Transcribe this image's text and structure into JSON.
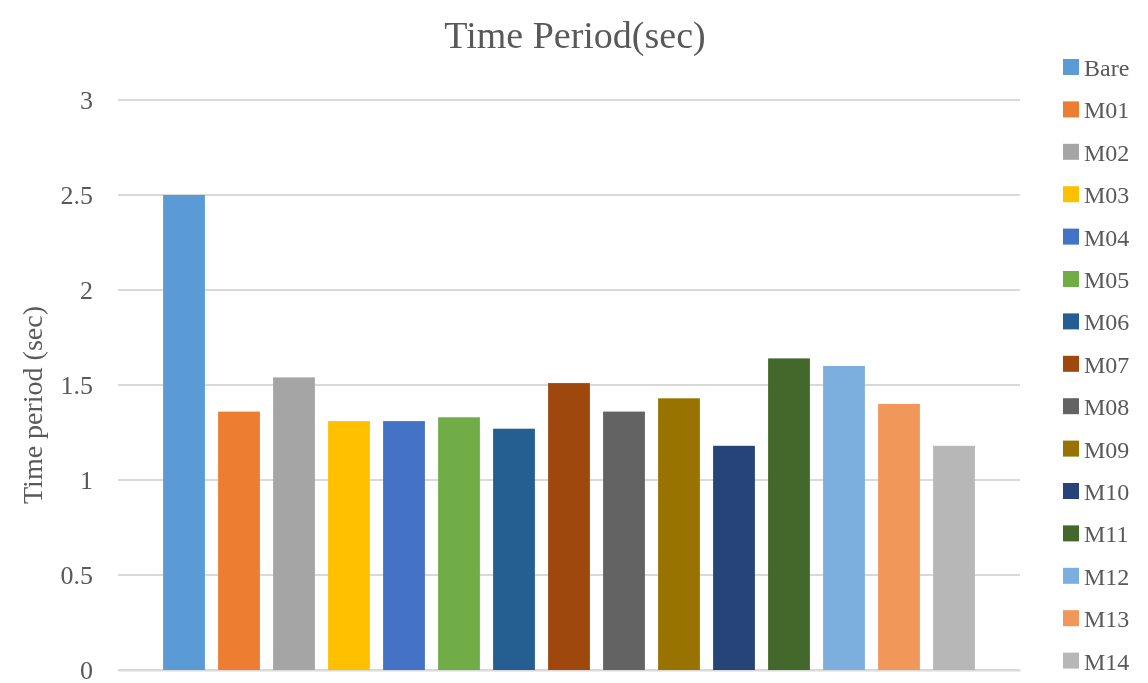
{
  "chart_data": {
    "type": "bar",
    "title": "Time Period(sec)",
    "ylabel": "Time period (sec)",
    "categories": [
      null
    ],
    "series": [
      {
        "name": "Bare",
        "color": "#5b9bd5",
        "values": [
          2.5
        ]
      },
      {
        "name": "M01",
        "color": "#ed7d31",
        "values": [
          1.36
        ]
      },
      {
        "name": "M02",
        "color": "#a5a5a5",
        "values": [
          1.54
        ]
      },
      {
        "name": "M03",
        "color": "#ffc000",
        "values": [
          1.31
        ]
      },
      {
        "name": "M04",
        "color": "#4472c4",
        "values": [
          1.31
        ]
      },
      {
        "name": "M05",
        "color": "#70ad47",
        "values": [
          1.33
        ]
      },
      {
        "name": "M06",
        "color": "#255e91",
        "values": [
          1.27
        ]
      },
      {
        "name": "M07",
        "color": "#9e480e",
        "values": [
          1.51
        ]
      },
      {
        "name": "M08",
        "color": "#636363",
        "values": [
          1.36
        ]
      },
      {
        "name": "M09",
        "color": "#997300",
        "values": [
          1.43
        ]
      },
      {
        "name": "M10",
        "color": "#264478",
        "values": [
          1.18
        ]
      },
      {
        "name": "M11",
        "color": "#43682b",
        "values": [
          1.64
        ]
      },
      {
        "name": "M12",
        "color": "#7cafdd",
        "values": [
          1.6
        ]
      },
      {
        "name": "M13",
        "color": "#f1975a",
        "values": [
          1.4
        ]
      },
      {
        "name": "M14",
        "color": "#b7b7b7",
        "values": [
          1.18
        ]
      }
    ],
    "ylim": [
      0,
      3
    ],
    "yticks": [
      0,
      0.5,
      1,
      1.5,
      2,
      2.5,
      3
    ],
    "grid": "y",
    "legend": "right"
  }
}
